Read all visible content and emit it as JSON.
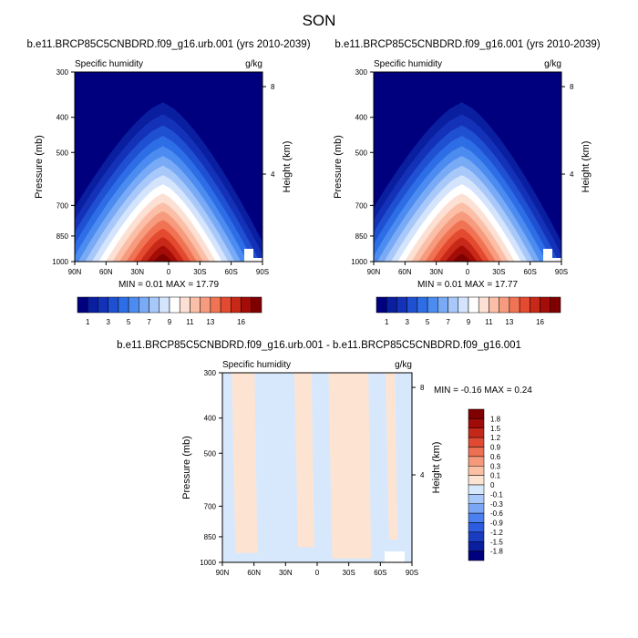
{
  "figure": {
    "title": "SON"
  },
  "palettes": {
    "abs": [
      "#00007f",
      "#0a1ea0",
      "#1432b8",
      "#1f50d2",
      "#2d6ee6",
      "#4c8cf0",
      "#78aaf6",
      "#a8c8fa",
      "#d4e4fc",
      "#ffffff",
      "#fde0d4",
      "#fbbfa8",
      "#f79b7e",
      "#f07454",
      "#e44a30",
      "#c82818",
      "#a40c08",
      "#7f0000"
    ],
    "diff": [
      "#00007f",
      "#0a1ea0",
      "#1a3cc0",
      "#2c5ce0",
      "#4a80f0",
      "#7aa6f6",
      "#a8c8fa",
      "#d8e8fc",
      "#fde4d2",
      "#fbc0a4",
      "#f6987a",
      "#ee7052",
      "#e04a32",
      "#c42818",
      "#a00a08",
      "#7f0000"
    ]
  },
  "chart_data": [
    {
      "type": "contour",
      "title": "b.e11.BRCP85C5CNBDRD.f09_g16.urb.001 (yrs 2010-2039)",
      "left_label": "Specific humidity",
      "right_label": "g/kg",
      "ylabel": "Pressure (mb)",
      "ylabel_right": "Height (km)",
      "x_ticks": [
        "90N",
        "60N",
        "30N",
        "0",
        "30S",
        "60S",
        "90S"
      ],
      "y_ticks": [
        "300",
        "400",
        "500",
        "700",
        "850",
        "1000"
      ],
      "y2_ticks": [
        "8",
        "4"
      ],
      "min_label": "MIN =  0.01  MAX =  17.79",
      "min": 0.01,
      "max": 17.79,
      "colorbar_labels": [
        "1",
        "3",
        "5",
        "7",
        "9",
        "11",
        "13",
        "16"
      ]
    },
    {
      "type": "contour",
      "title": "b.e11.BRCP85C5CNBDRD.f09_g16.001 (yrs 2010-2039)",
      "left_label": "Specific humidity",
      "right_label": "g/kg",
      "ylabel": "Pressure (mb)",
      "ylabel_right": "Height (km)",
      "x_ticks": [
        "90N",
        "60N",
        "30N",
        "0",
        "30S",
        "60S",
        "90S"
      ],
      "y_ticks": [
        "300",
        "400",
        "500",
        "700",
        "850",
        "1000"
      ],
      "y2_ticks": [
        "8",
        "4"
      ],
      "min_label": "MIN =  0.01  MAX =  17.77",
      "min": 0.01,
      "max": 17.77,
      "colorbar_labels": [
        "1",
        "3",
        "5",
        "7",
        "9",
        "11",
        "13",
        "16"
      ]
    },
    {
      "type": "contour",
      "title": "b.e11.BRCP85C5CNBDRD.f09_g16.urb.001 - b.e11.BRCP85C5CNBDRD.f09_g16.001",
      "left_label": "Specific humidity",
      "right_label": "g/kg",
      "ylabel": "Pressure (mb)",
      "ylabel_right": "Height (km)",
      "x_ticks": [
        "90N",
        "60N",
        "30N",
        "0",
        "30S",
        "60S",
        "90S"
      ],
      "y_ticks": [
        "300",
        "400",
        "500",
        "700",
        "850",
        "1000"
      ],
      "y2_ticks": [
        "8",
        "4"
      ],
      "min_label": "MIN =  -0.16  MAX =   0.24",
      "min": -0.16,
      "max": 0.24,
      "colorbar_labels": [
        "1.8",
        "1.5",
        "1.2",
        "0.9",
        "0.6",
        "0.3",
        "0.1",
        "0",
        "-0.1",
        "-0.3",
        "-0.6",
        "-0.9",
        "-1.2",
        "-1.5",
        "-1.8"
      ]
    }
  ]
}
